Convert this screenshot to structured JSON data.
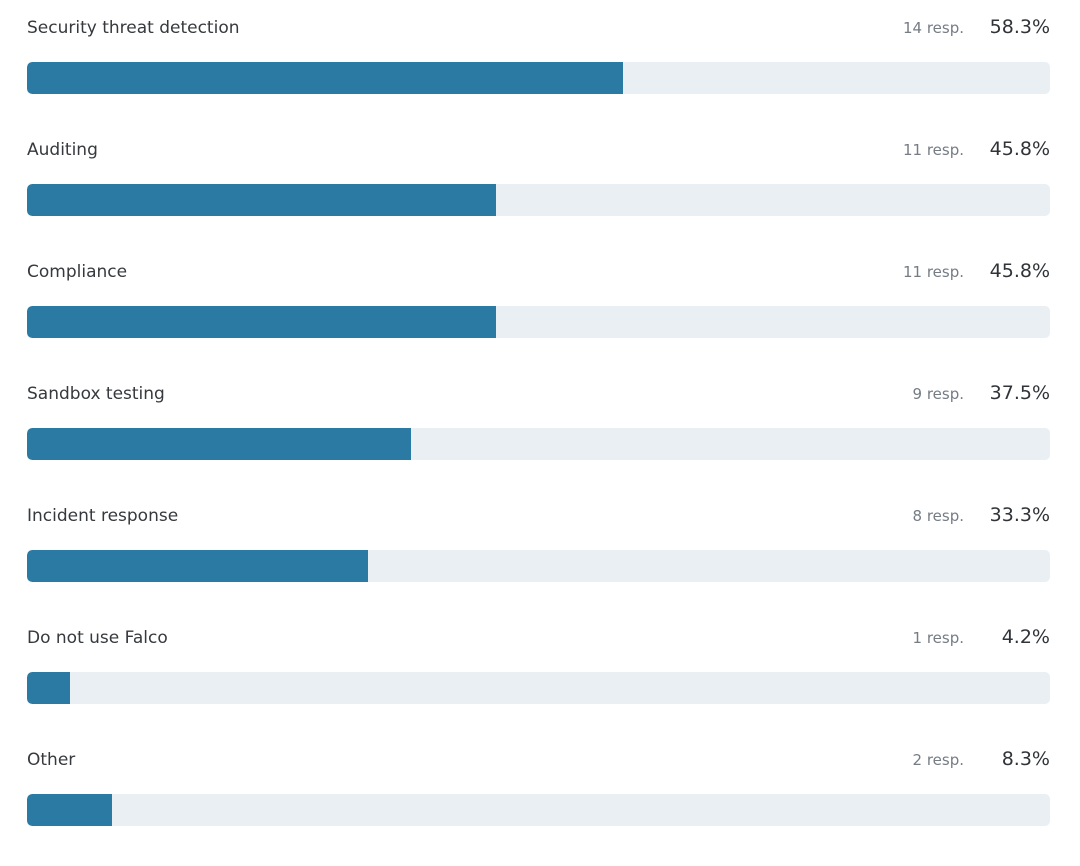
{
  "colors": {
    "bar_fill": "#2a7aa3",
    "bar_track": "#e9eff2",
    "label_text": "#36393d",
    "muted_text": "#757c84",
    "percent_text": "#303438",
    "background": "#ffffff"
  },
  "chart_data": {
    "type": "bar",
    "orientation": "horizontal",
    "title": "",
    "xlabel": "",
    "ylabel": "",
    "unit": "%",
    "xlim": [
      0,
      100
    ],
    "grid": false,
    "legend": false,
    "categories": [
      "Security threat detection",
      "Auditing",
      "Compliance",
      "Sandbox testing",
      "Incident response",
      "Do not use Falco",
      "Other"
    ],
    "values": [
      58.3,
      45.8,
      45.8,
      37.5,
      33.3,
      4.2,
      8.3
    ],
    "responses": [
      14,
      11,
      11,
      9,
      8,
      1,
      2
    ],
    "rows": [
      {
        "label": "Security threat detection",
        "responses_label": "14 resp.",
        "percent_label": "58.3%",
        "value": 58.3
      },
      {
        "label": "Auditing",
        "responses_label": "11 resp.",
        "percent_label": "45.8%",
        "value": 45.8
      },
      {
        "label": "Compliance",
        "responses_label": "11 resp.",
        "percent_label": "45.8%",
        "value": 45.8
      },
      {
        "label": "Sandbox testing",
        "responses_label": "9 resp.",
        "percent_label": "37.5%",
        "value": 37.5
      },
      {
        "label": "Incident response",
        "responses_label": "8 resp.",
        "percent_label": "33.3%",
        "value": 33.3
      },
      {
        "label": "Do not use Falco",
        "responses_label": "1 resp.",
        "percent_label": "4.2%",
        "value": 4.2
      },
      {
        "label": "Other",
        "responses_label": "2 resp.",
        "percent_label": "8.3%",
        "value": 8.3
      }
    ]
  }
}
